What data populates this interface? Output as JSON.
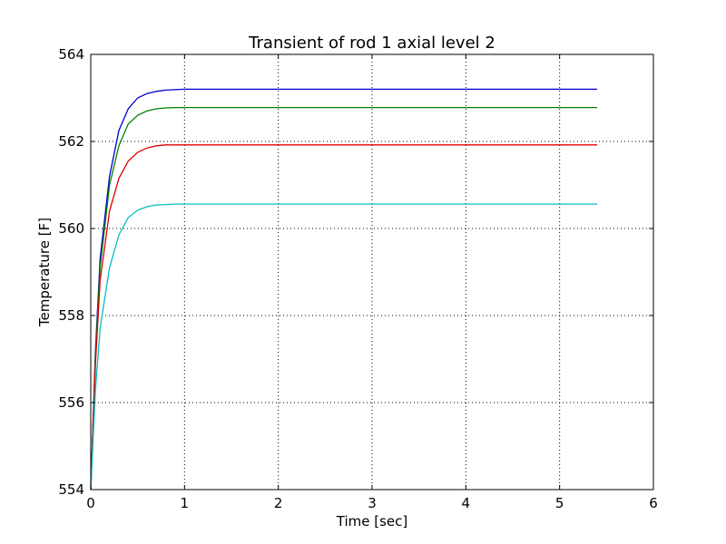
{
  "chart_data": {
    "type": "line",
    "title": "Transient of rod 1 axial level 2",
    "xlabel": "Time [sec]",
    "ylabel": "Temperature [F]",
    "xlim": [
      0,
      6
    ],
    "ylim": [
      554,
      564
    ],
    "x_ticks": [
      0,
      1,
      2,
      3,
      4,
      5,
      6
    ],
    "y_ticks": [
      554,
      556,
      558,
      560,
      562,
      564
    ],
    "x_tick_labels": [
      "0",
      "1",
      "2",
      "3",
      "4",
      "5",
      "6"
    ],
    "y_tick_labels": [
      "554",
      "556",
      "558",
      "560",
      "562",
      "564"
    ],
    "grid": true,
    "legend": "none",
    "series": [
      {
        "color": "#0000cc",
        "x": [
          0.0,
          0.05,
          0.1,
          0.2,
          0.3,
          0.4,
          0.5,
          0.6,
          0.7,
          0.8,
          0.9,
          1.0,
          1.5,
          2.0,
          3.0,
          4.0,
          5.0,
          5.4
        ],
        "y": [
          554.0,
          557.2,
          559.3,
          561.2,
          562.25,
          562.75,
          563.0,
          563.1,
          563.15,
          563.18,
          563.19,
          563.2,
          563.2,
          563.2,
          563.2,
          563.2,
          563.2,
          563.2
        ]
      },
      {
        "color": "#008000",
        "x": [
          0.0,
          0.05,
          0.1,
          0.2,
          0.3,
          0.4,
          0.5,
          0.6,
          0.7,
          0.8,
          0.9,
          1.0,
          1.5,
          2.0,
          3.0,
          4.0,
          5.0,
          5.4
        ],
        "y": [
          554.0,
          557.1,
          559.1,
          561.0,
          561.9,
          562.4,
          562.6,
          562.7,
          562.75,
          562.77,
          562.78,
          562.78,
          562.78,
          562.78,
          562.78,
          562.78,
          562.78,
          562.78
        ]
      },
      {
        "color": "#dd0000",
        "x": [
          0.0,
          0.05,
          0.1,
          0.2,
          0.3,
          0.4,
          0.5,
          0.6,
          0.7,
          0.8,
          0.9,
          1.0,
          1.5,
          2.0,
          3.0,
          4.0,
          5.0,
          5.4
        ],
        "y": [
          554.0,
          556.9,
          558.8,
          560.4,
          561.15,
          561.55,
          561.75,
          561.85,
          561.9,
          561.92,
          561.92,
          561.92,
          561.92,
          561.92,
          561.92,
          561.92,
          561.92,
          561.92
        ]
      },
      {
        "color": "#00bfbf",
        "x": [
          0.0,
          0.05,
          0.1,
          0.2,
          0.3,
          0.4,
          0.5,
          0.6,
          0.7,
          0.8,
          0.9,
          1.0,
          1.5,
          2.0,
          3.0,
          4.0,
          5.0,
          5.4
        ],
        "y": [
          554.0,
          556.3,
          557.7,
          559.1,
          559.85,
          560.25,
          560.42,
          560.5,
          560.54,
          560.55,
          560.56,
          560.56,
          560.56,
          560.56,
          560.56,
          560.56,
          560.56,
          560.56
        ]
      }
    ]
  }
}
